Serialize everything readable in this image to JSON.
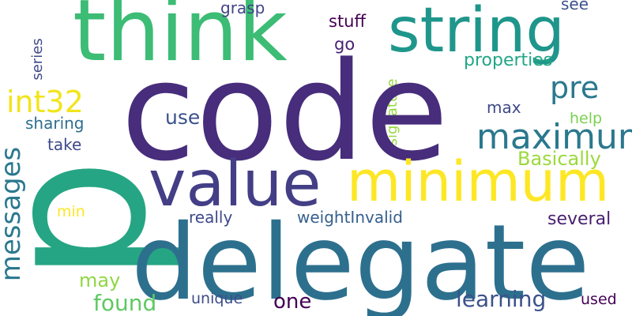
{
  "words": [
    {
      "text": "p",
      "color": "#25a584"
    },
    {
      "text": "code",
      "color": "#472d7b"
    },
    {
      "text": "think",
      "color": "#3cbc75"
    },
    {
      "text": "string",
      "color": "#1f968b"
    },
    {
      "text": "delegate",
      "color": "#2d708e"
    },
    {
      "text": "minimum",
      "color": "#fde725"
    },
    {
      "text": "value",
      "color": "#433e85"
    },
    {
      "text": "maximum",
      "color": "#2a788e"
    },
    {
      "text": "messages",
      "color": "#2a788e"
    },
    {
      "text": "int32",
      "color": "#f2e41c"
    },
    {
      "text": "pre",
      "color": "#2a788e"
    },
    {
      "text": "Basically",
      "color": "#9bd93c"
    },
    {
      "text": "learning",
      "color": "#3b528b"
    },
    {
      "text": "found",
      "color": "#5ec962"
    },
    {
      "text": "one",
      "color": "#440154"
    },
    {
      "text": "several",
      "color": "#481f70"
    },
    {
      "text": "weightInvalid",
      "color": "#355f8d"
    },
    {
      "text": "really",
      "color": "#3e4989"
    },
    {
      "text": "may",
      "color": "#8fd744"
    },
    {
      "text": "unique",
      "color": "#3e4c8a"
    },
    {
      "text": "used",
      "color": "#440154"
    },
    {
      "text": "use",
      "color": "#3b528b"
    },
    {
      "text": "max",
      "color": "#3e4a89"
    },
    {
      "text": "help",
      "color": "#7ad151"
    },
    {
      "text": "take",
      "color": "#3e4989"
    },
    {
      "text": "sharing",
      "color": "#2e6e8e"
    },
    {
      "text": "min",
      "color": "#fde725"
    },
    {
      "text": "stuff",
      "color": "#440154"
    },
    {
      "text": "go",
      "color": "#481f70"
    },
    {
      "text": "grasp",
      "color": "#404387"
    },
    {
      "text": "see",
      "color": "#3b528b"
    },
    {
      "text": "properties",
      "color": "#21a685"
    },
    {
      "text": "series",
      "color": "#3e4989"
    },
    {
      "text": "signature",
      "color": "#95d840"
    }
  ]
}
